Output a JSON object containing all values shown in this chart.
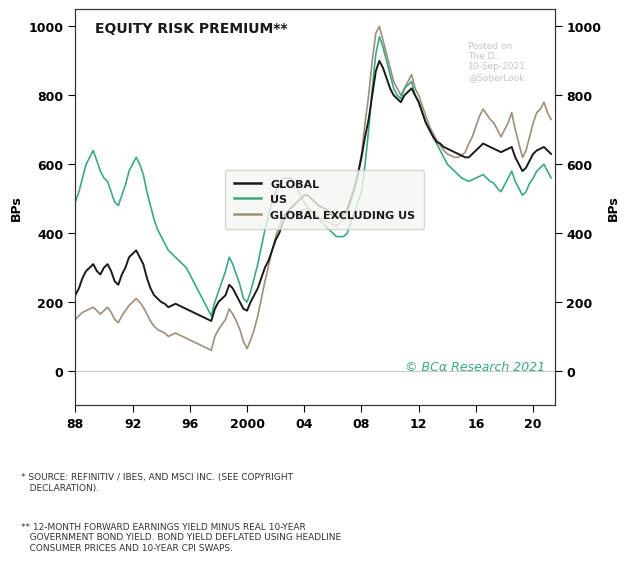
{
  "title": "EQUITY RISK PREMIUM**",
  "ylabel_left": "BPs",
  "ylabel_right": "BPs",
  "xlim": [
    1988,
    2021.5
  ],
  "ylim": [
    -100,
    1050
  ],
  "yticks": [
    0,
    200,
    400,
    600,
    800,
    1000
  ],
  "xticks": [
    1988,
    1992,
    1996,
    2000,
    2004,
    2008,
    2012,
    2016,
    2020
  ],
  "xticklabels": [
    "88",
    "92",
    "96",
    "2000",
    "04",
    "08",
    "12",
    "16",
    "20"
  ],
  "color_global": "#1a1a1a",
  "color_us": "#3aaa7e",
  "color_global_ex_us": "#9e8e7a",
  "legend_labels": [
    "GLOBAL",
    "US",
    "GLOBAL EXCLUDING US"
  ],
  "copyright_text": "© BCα Research 2021",
  "copyright_color": "#3aaa7e",
  "watermark_lines": [
    "Posted on",
    "The D...",
    "10-Sep-2021",
    "@SoberLook"
  ],
  "footnote1": "* SOURCE: REFINITIV / IBES, AND MSCI INC. (SEE COPYRIGHT\n   DECLARATION).",
  "footnote2": "** 12-MONTH FORWARD EARNINGS YIELD MINUS REAL 10-YEAR\n   GOVERNMENT BOND YIELD. BOND YIELD DEFLATED USING HEADLINE\n   CONSUMER PRICES AND 10-YEAR CPI SWAPS.",
  "global_x": [
    1988.0,
    1988.25,
    1988.5,
    1988.75,
    1989.0,
    1989.25,
    1989.5,
    1989.75,
    1990.0,
    1990.25,
    1990.5,
    1990.75,
    1991.0,
    1991.25,
    1991.5,
    1991.75,
    1992.0,
    1992.25,
    1992.5,
    1992.75,
    1993.0,
    1993.25,
    1993.5,
    1993.75,
    1994.0,
    1994.25,
    1994.5,
    1994.75,
    1995.0,
    1995.25,
    1995.5,
    1995.75,
    1996.0,
    1996.25,
    1996.5,
    1996.75,
    1997.0,
    1997.25,
    1997.5,
    1997.75,
    1998.0,
    1998.25,
    1998.5,
    1998.75,
    1999.0,
    1999.25,
    1999.5,
    1999.75,
    2000.0,
    2000.25,
    2000.5,
    2000.75,
    2001.0,
    2001.25,
    2001.5,
    2001.75,
    2002.0,
    2002.25,
    2002.5,
    2002.75,
    2003.0,
    2003.25,
    2003.5,
    2003.75,
    2004.0,
    2004.25,
    2004.5,
    2004.75,
    2005.0,
    2005.25,
    2005.5,
    2005.75,
    2006.0,
    2006.25,
    2006.5,
    2006.75,
    2007.0,
    2007.25,
    2007.5,
    2007.75,
    2008.0,
    2008.25,
    2008.5,
    2008.75,
    2009.0,
    2009.25,
    2009.5,
    2009.75,
    2010.0,
    2010.25,
    2010.5,
    2010.75,
    2011.0,
    2011.25,
    2011.5,
    2011.75,
    2012.0,
    2012.25,
    2012.5,
    2012.75,
    2013.0,
    2013.25,
    2013.5,
    2013.75,
    2014.0,
    2014.25,
    2014.5,
    2014.75,
    2015.0,
    2015.25,
    2015.5,
    2015.75,
    2016.0,
    2016.25,
    2016.5,
    2016.75,
    2017.0,
    2017.25,
    2017.5,
    2017.75,
    2018.0,
    2018.25,
    2018.5,
    2018.75,
    2019.0,
    2019.25,
    2019.5,
    2019.75,
    2020.0,
    2020.25,
    2020.5,
    2020.75,
    2021.0,
    2021.25
  ],
  "global_y": [
    220,
    240,
    270,
    290,
    300,
    310,
    290,
    280,
    300,
    310,
    290,
    260,
    250,
    280,
    300,
    330,
    340,
    350,
    330,
    310,
    270,
    240,
    220,
    210,
    200,
    195,
    185,
    190,
    195,
    190,
    185,
    180,
    175,
    170,
    165,
    160,
    155,
    150,
    145,
    180,
    200,
    210,
    220,
    250,
    240,
    220,
    200,
    180,
    175,
    200,
    220,
    240,
    270,
    300,
    320,
    350,
    380,
    400,
    430,
    460,
    470,
    480,
    490,
    500,
    510,
    510,
    500,
    490,
    480,
    475,
    470,
    460,
    450,
    445,
    450,
    455,
    470,
    500,
    530,
    570,
    620,
    680,
    730,
    800,
    870,
    900,
    880,
    850,
    820,
    800,
    790,
    780,
    800,
    810,
    820,
    800,
    780,
    750,
    720,
    700,
    680,
    665,
    660,
    650,
    645,
    640,
    635,
    630,
    625,
    620,
    620,
    630,
    640,
    650,
    660,
    655,
    650,
    645,
    640,
    635,
    640,
    645,
    650,
    620,
    600,
    580,
    590,
    610,
    630,
    640,
    645,
    650,
    640,
    630
  ],
  "us_x": [
    1988.0,
    1988.25,
    1988.5,
    1988.75,
    1989.0,
    1989.25,
    1989.5,
    1989.75,
    1990.0,
    1990.25,
    1990.5,
    1990.75,
    1991.0,
    1991.25,
    1991.5,
    1991.75,
    1992.0,
    1992.25,
    1992.5,
    1992.75,
    1993.0,
    1993.25,
    1993.5,
    1993.75,
    1994.0,
    1994.25,
    1994.5,
    1994.75,
    1995.0,
    1995.25,
    1995.5,
    1995.75,
    1996.0,
    1996.25,
    1996.5,
    1996.75,
    1997.0,
    1997.25,
    1997.5,
    1997.75,
    1998.0,
    1998.25,
    1998.5,
    1998.75,
    1999.0,
    1999.25,
    1999.5,
    1999.75,
    2000.0,
    2000.25,
    2000.5,
    2000.75,
    2001.0,
    2001.25,
    2001.5,
    2001.75,
    2002.0,
    2002.25,
    2002.5,
    2002.75,
    2003.0,
    2003.25,
    2003.5,
    2003.75,
    2004.0,
    2004.25,
    2004.5,
    2004.75,
    2005.0,
    2005.25,
    2005.5,
    2005.75,
    2006.0,
    2006.25,
    2006.5,
    2006.75,
    2007.0,
    2007.25,
    2007.5,
    2007.75,
    2008.0,
    2008.25,
    2008.5,
    2008.75,
    2009.0,
    2009.25,
    2009.5,
    2009.75,
    2010.0,
    2010.25,
    2010.5,
    2010.75,
    2011.0,
    2011.25,
    2011.5,
    2011.75,
    2012.0,
    2012.25,
    2012.5,
    2012.75,
    2013.0,
    2013.25,
    2013.5,
    2013.75,
    2014.0,
    2014.25,
    2014.5,
    2014.75,
    2015.0,
    2015.25,
    2015.5,
    2015.75,
    2016.0,
    2016.25,
    2016.5,
    2016.75,
    2017.0,
    2017.25,
    2017.5,
    2017.75,
    2018.0,
    2018.25,
    2018.5,
    2018.75,
    2019.0,
    2019.25,
    2019.5,
    2019.75,
    2020.0,
    2020.25,
    2020.5,
    2020.75,
    2021.0,
    2021.25
  ],
  "us_y": [
    490,
    520,
    560,
    600,
    620,
    640,
    610,
    580,
    560,
    550,
    520,
    490,
    480,
    510,
    540,
    580,
    600,
    620,
    600,
    570,
    520,
    480,
    440,
    410,
    390,
    370,
    350,
    340,
    330,
    320,
    310,
    300,
    280,
    260,
    240,
    220,
    200,
    180,
    160,
    200,
    230,
    260,
    290,
    330,
    310,
    280,
    250,
    210,
    200,
    230,
    270,
    310,
    360,
    410,
    450,
    490,
    520,
    540,
    560,
    560,
    560,
    550,
    530,
    510,
    490,
    475,
    460,
    450,
    440,
    430,
    420,
    410,
    400,
    390,
    390,
    390,
    400,
    430,
    460,
    490,
    520,
    600,
    700,
    820,
    920,
    970,
    940,
    900,
    860,
    820,
    800,
    790,
    820,
    830,
    840,
    800,
    780,
    750,
    720,
    700,
    680,
    660,
    640,
    620,
    600,
    590,
    580,
    570,
    560,
    555,
    550,
    555,
    560,
    565,
    570,
    560,
    550,
    545,
    530,
    520,
    540,
    560,
    580,
    550,
    530,
    510,
    520,
    545,
    560,
    580,
    590,
    600,
    580,
    560
  ],
  "gxus_x": [
    1988.0,
    1988.25,
    1988.5,
    1988.75,
    1989.0,
    1989.25,
    1989.5,
    1989.75,
    1990.0,
    1990.25,
    1990.5,
    1990.75,
    1991.0,
    1991.25,
    1991.5,
    1991.75,
    1992.0,
    1992.25,
    1992.5,
    1992.75,
    1993.0,
    1993.25,
    1993.5,
    1993.75,
    1994.0,
    1994.25,
    1994.5,
    1994.75,
    1995.0,
    1995.25,
    1995.5,
    1995.75,
    1996.0,
    1996.25,
    1996.5,
    1996.75,
    1997.0,
    1997.25,
    1997.5,
    1997.75,
    1998.0,
    1998.25,
    1998.5,
    1998.75,
    1999.0,
    1999.25,
    1999.5,
    1999.75,
    2000.0,
    2000.25,
    2000.5,
    2000.75,
    2001.0,
    2001.25,
    2001.5,
    2001.75,
    2002.0,
    2002.25,
    2002.5,
    2002.75,
    2003.0,
    2003.25,
    2003.5,
    2003.75,
    2004.0,
    2004.25,
    2004.5,
    2004.75,
    2005.0,
    2005.25,
    2005.5,
    2005.75,
    2006.0,
    2006.25,
    2006.5,
    2006.75,
    2007.0,
    2007.25,
    2007.5,
    2007.75,
    2008.0,
    2008.25,
    2008.5,
    2008.75,
    2009.0,
    2009.25,
    2009.5,
    2009.75,
    2010.0,
    2010.25,
    2010.5,
    2010.75,
    2011.0,
    2011.25,
    2011.5,
    2011.75,
    2012.0,
    2012.25,
    2012.5,
    2012.75,
    2013.0,
    2013.25,
    2013.5,
    2013.75,
    2014.0,
    2014.25,
    2014.5,
    2014.75,
    2015.0,
    2015.25,
    2015.5,
    2015.75,
    2016.0,
    2016.25,
    2016.5,
    2016.75,
    2017.0,
    2017.25,
    2017.5,
    2017.75,
    2018.0,
    2018.25,
    2018.5,
    2018.75,
    2019.0,
    2019.25,
    2019.5,
    2019.75,
    2020.0,
    2020.25,
    2020.5,
    2020.75,
    2021.0,
    2021.25
  ],
  "gxus_y": [
    150,
    160,
    170,
    175,
    180,
    185,
    175,
    165,
    175,
    185,
    170,
    150,
    140,
    160,
    175,
    190,
    200,
    210,
    200,
    185,
    165,
    145,
    130,
    120,
    115,
    110,
    100,
    105,
    110,
    105,
    100,
    95,
    90,
    85,
    80,
    75,
    70,
    65,
    60,
    100,
    120,
    135,
    150,
    180,
    165,
    145,
    120,
    85,
    65,
    90,
    120,
    160,
    210,
    260,
    305,
    350,
    390,
    420,
    450,
    460,
    460,
    455,
    455,
    460,
    470,
    470,
    465,
    455,
    445,
    440,
    435,
    430,
    425,
    420,
    430,
    440,
    460,
    490,
    530,
    575,
    630,
    720,
    800,
    900,
    980,
    1000,
    960,
    920,
    880,
    840,
    820,
    800,
    820,
    840,
    860,
    820,
    800,
    770,
    740,
    710,
    690,
    670,
    655,
    640,
    630,
    625,
    620,
    620,
    625,
    635,
    660,
    680,
    710,
    740,
    760,
    745,
    730,
    720,
    700,
    680,
    700,
    720,
    750,
    700,
    660,
    620,
    640,
    680,
    720,
    750,
    760,
    780,
    750,
    730
  ]
}
